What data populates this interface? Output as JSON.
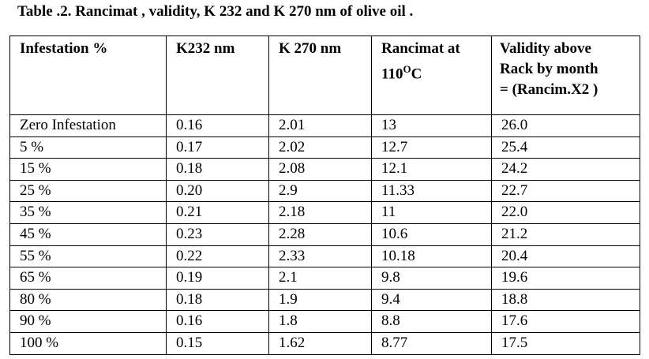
{
  "title": "Table .2. Rancimat , validity, K 232 and K 270 nm of olive oil .",
  "table": {
    "header": [
      "Infestation %",
      "K232 nm",
      "K 270 nm",
      {
        "text": "Rancimat at 110",
        "sup": "O",
        "after": "C"
      },
      {
        "lines": [
          "Validity above",
          "Rack by month",
          "= (Rancim.X2 )"
        ]
      }
    ],
    "rows": [
      [
        "Zero Infestation",
        "0.16",
        "2.01",
        "13",
        "26.0"
      ],
      [
        "5 %",
        "0.17",
        "2.02",
        "12.7",
        "25.4"
      ],
      [
        "15 %",
        "0.18",
        "2.08",
        "12.1",
        "24.2"
      ],
      [
        "25 %",
        "0.20",
        "2.9",
        "11.33",
        "22.7"
      ],
      [
        "35 %",
        "0.21",
        "2.18",
        "11",
        "22.0"
      ],
      [
        "45 %",
        "0.23",
        "2.28",
        "10.6",
        "21.2"
      ],
      [
        "55 %",
        "0.22",
        "2.33",
        "10.18",
        "20.4"
      ],
      [
        "65 %",
        "0.19",
        "2.1",
        "9.8",
        "19.6"
      ],
      [
        "80 %",
        "0.18",
        "1.9",
        "9.4",
        "18.8"
      ],
      [
        "90 %",
        "0.16",
        "1.8",
        "8.8",
        "17.6"
      ],
      [
        "100 %",
        "0.15",
        "1.62",
        "8.77",
        "17.5"
      ]
    ]
  }
}
